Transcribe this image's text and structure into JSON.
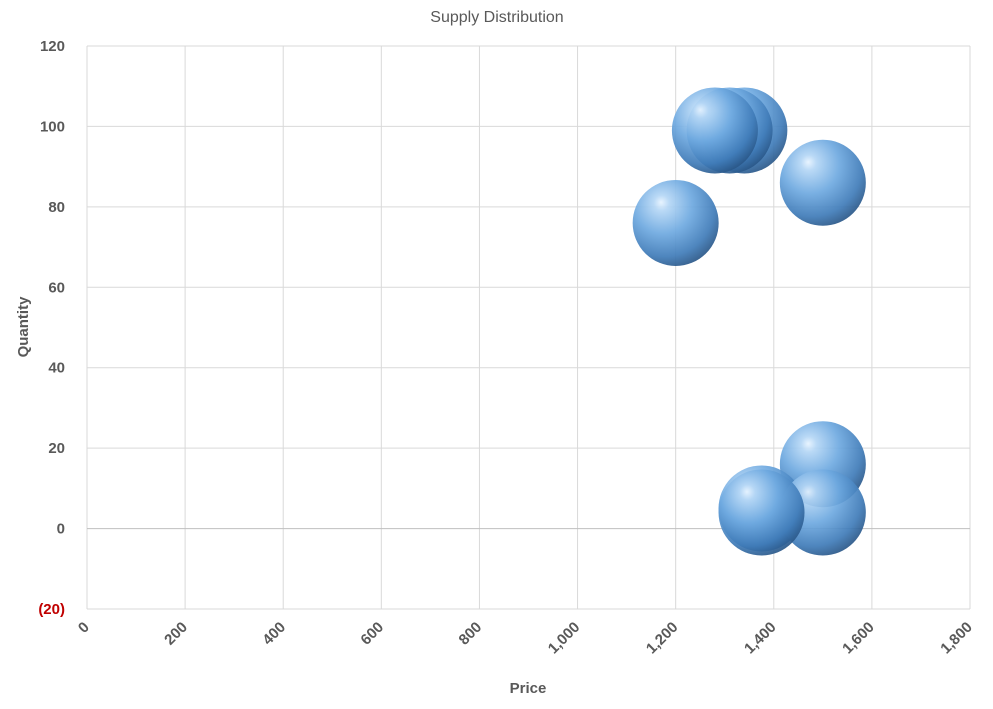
{
  "chart_data": {
    "type": "bubble",
    "title": "Supply Distribution",
    "xlabel": "Price",
    "ylabel": "Quantity",
    "xlim": [
      0,
      1800
    ],
    "ylim": [
      -20,
      120
    ],
    "x_ticks": [
      {
        "value": 0,
        "label": "0"
      },
      {
        "value": 200,
        "label": "200"
      },
      {
        "value": 400,
        "label": "400"
      },
      {
        "value": 600,
        "label": "600"
      },
      {
        "value": 800,
        "label": "800"
      },
      {
        "value": 1000,
        "label": "1,000"
      },
      {
        "value": 1200,
        "label": "1,200"
      },
      {
        "value": 1400,
        "label": "1,400"
      },
      {
        "value": 1600,
        "label": "1,600"
      },
      {
        "value": 1800,
        "label": "1,800"
      }
    ],
    "y_ticks": [
      {
        "value": -20,
        "label": "(20)",
        "negative": true
      },
      {
        "value": 0,
        "label": "0"
      },
      {
        "value": 20,
        "label": "20"
      },
      {
        "value": 40,
        "label": "40"
      },
      {
        "value": 60,
        "label": "60"
      },
      {
        "value": 80,
        "label": "80"
      },
      {
        "value": 100,
        "label": "100"
      },
      {
        "value": 120,
        "label": "120"
      }
    ],
    "grid": true,
    "bubble_color": "#5b9bd5",
    "points": [
      {
        "x": 1340,
        "y": 99
      },
      {
        "x": 1310,
        "y": 99
      },
      {
        "x": 1280,
        "y": 99
      },
      {
        "x": 1200,
        "y": 76
      },
      {
        "x": 1500,
        "y": 86
      },
      {
        "x": 1500,
        "y": 16
      },
      {
        "x": 1375,
        "y": 5
      },
      {
        "x": 1500,
        "y": 4
      },
      {
        "x": 1375,
        "y": 4
      }
    ]
  }
}
